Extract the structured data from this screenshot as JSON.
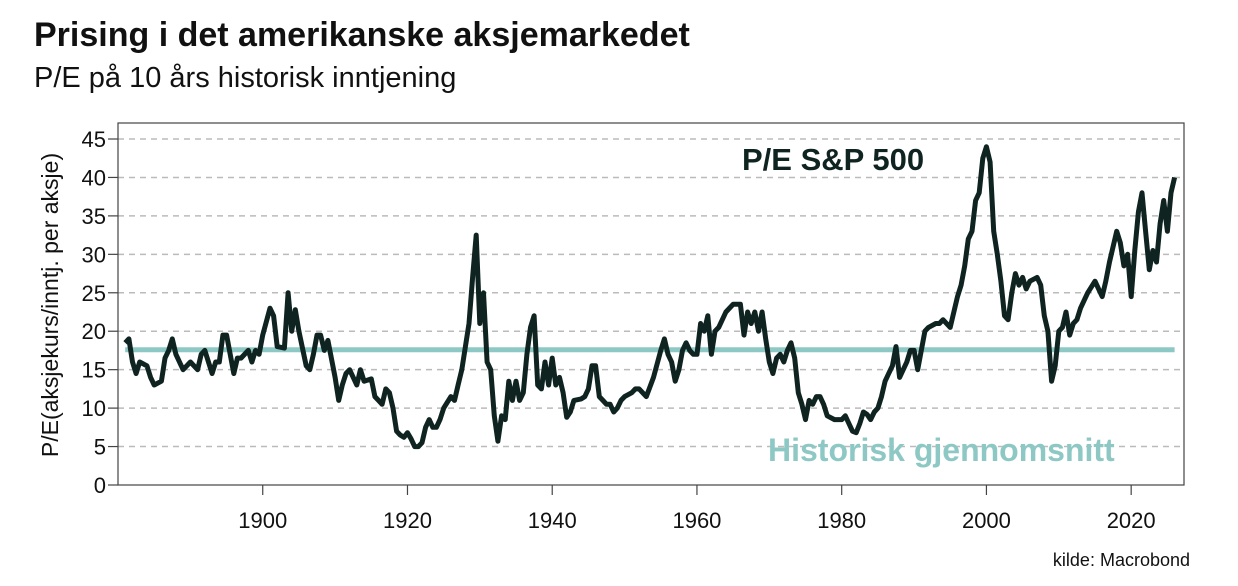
{
  "chart_data": {
    "type": "line",
    "title": "Prising i det amerikanske aksjemarkedet",
    "subtitle": "P/E på 10 års historisk inntjening",
    "ylabel": "P/E(aksjekurs/inntj. per aksje)",
    "xlabel": "",
    "source": "kilde: Macrobond",
    "xlim": [
      1880,
      2027.3
    ],
    "ylim": [
      0,
      45
    ],
    "grid": true,
    "x_ticks": [
      1900,
      1920,
      1940,
      1960,
      1980,
      2000,
      2020
    ],
    "y_ticks": [
      0,
      5,
      10,
      15,
      20,
      25,
      30,
      35,
      40,
      45
    ],
    "colors": {
      "pe": "#0f2420",
      "mean": "#8dc8c5"
    },
    "series": [
      {
        "name": "P/E S&P 500",
        "x": [
          1881,
          1881.5,
          1882,
          1882.5,
          1883,
          1884,
          1884.5,
          1885,
          1886,
          1886.5,
          1887,
          1887.5,
          1888,
          1889,
          1890,
          1891,
          1891.5,
          1892,
          1893,
          1893.5,
          1894,
          1894.5,
          1895,
          1895.5,
          1896,
          1896.5,
          1897,
          1898,
          1898.5,
          1899,
          1899.5,
          1900,
          1901,
          1901.5,
          1902,
          1903,
          1903.5,
          1904,
          1904.5,
          1905,
          1906,
          1906.5,
          1907,
          1907.5,
          1908,
          1908.5,
          1909,
          1910,
          1910.5,
          1911,
          1911.5,
          1912,
          1913,
          1913.5,
          1914,
          1915,
          1915.5,
          1916,
          1916.5,
          1917,
          1917.5,
          1918,
          1918.5,
          1919,
          1919.5,
          1920,
          1920.5,
          1921,
          1921.5,
          1922,
          1922.5,
          1923,
          1923.5,
          1924,
          1924.5,
          1925,
          1926,
          1926.5,
          1927,
          1927.5,
          1928,
          1928.5,
          1929,
          1929.5,
          1930,
          1930.5,
          1931,
          1931.5,
          1932,
          1932.5,
          1933,
          1933.5,
          1934,
          1934.5,
          1935,
          1935.5,
          1936,
          1936.5,
          1937,
          1937.5,
          1938,
          1938.5,
          1939,
          1939.5,
          1940,
          1940.5,
          1941,
          1941.5,
          1942,
          1942.5,
          1943,
          1944,
          1944.5,
          1945,
          1945.5,
          1946,
          1946.5,
          1947,
          1947.5,
          1948,
          1948.5,
          1949,
          1949.5,
          1950,
          1951,
          1951.5,
          1952,
          1953,
          1954,
          1955,
          1955.5,
          1956,
          1956.5,
          1957,
          1957.5,
          1958,
          1958.5,
          1959,
          1959.5,
          1960,
          1960.5,
          1961,
          1961.5,
          1962,
          1962.5,
          1963,
          1964,
          1965,
          1966,
          1966.5,
          1967,
          1967.5,
          1968,
          1968.5,
          1969,
          1969.5,
          1970,
          1970.5,
          1971,
          1971.5,
          1972,
          1972.5,
          1973,
          1973.5,
          1974,
          1974.5,
          1975,
          1975.5,
          1976,
          1976.5,
          1977,
          1977.5,
          1978,
          1979,
          1980,
          1980.5,
          1981,
          1981.5,
          1982,
          1982.5,
          1983,
          1983.5,
          1984,
          1984.5,
          1985,
          1985.5,
          1986,
          1986.5,
          1987,
          1987.5,
          1988,
          1988.5,
          1989,
          1989.5,
          1990,
          1990.5,
          1991,
          1991.5,
          1992,
          1993,
          1993.5,
          1994,
          1995,
          1996,
          1996.5,
          1997,
          1997.5,
          1998,
          1998.5,
          1999,
          1999.5,
          2000,
          2000.5,
          2001,
          2001.5,
          2002,
          2002.5,
          2003,
          2003.5,
          2004,
          2004.5,
          2005,
          2005.5,
          2006,
          2007,
          2007.5,
          2008,
          2008.5,
          2009,
          2009.5,
          2010,
          2010.5,
          2011,
          2011.5,
          2012,
          2012.5,
          2013,
          2014,
          2015,
          2015.5,
          2016,
          2016.5,
          2017,
          2018,
          2018.5,
          2019,
          2019.5,
          2020,
          2020.5,
          2021,
          2021.5,
          2022,
          2022.5,
          2023,
          2023.5,
          2024,
          2024.5,
          2025,
          2025.5,
          2026
        ],
        "values": [
          18.5,
          19,
          16,
          14.5,
          16,
          15.5,
          14,
          13,
          13.5,
          16.5,
          17.5,
          19,
          17,
          15,
          16,
          15,
          17,
          17.5,
          14.5,
          16,
          16,
          19.5,
          19.5,
          17,
          14.5,
          16.5,
          16.5,
          17.5,
          16,
          17.5,
          17,
          19.5,
          23,
          22,
          18,
          17.8,
          25,
          20,
          22.8,
          20,
          15.5,
          15,
          17,
          19.5,
          19.5,
          17.5,
          18.8,
          14,
          11,
          13,
          14.5,
          15,
          13,
          15,
          13.5,
          13.8,
          11.5,
          11,
          10.5,
          12.5,
          12,
          10,
          7,
          6.5,
          6.2,
          6.8,
          6,
          5,
          5,
          5.5,
          7.5,
          8.5,
          7.5,
          7.5,
          8.5,
          10,
          11.5,
          11,
          13,
          15,
          18,
          21,
          27,
          32.5,
          21,
          25,
          16,
          15,
          9,
          5.7,
          9,
          8.5,
          13.5,
          11,
          13.5,
          11,
          12,
          17,
          20.5,
          22,
          13,
          12.5,
          16,
          13,
          16.5,
          13,
          14,
          12,
          8.8,
          9.5,
          11,
          11.2,
          11.5,
          12.5,
          15.5,
          15.5,
          11.5,
          11,
          10.5,
          10.5,
          9.5,
          10,
          11,
          11.5,
          12,
          12.5,
          12.5,
          11.5,
          14,
          17.5,
          19,
          17,
          16,
          13.5,
          15,
          17.5,
          18.5,
          17.5,
          17,
          17,
          21,
          20,
          22,
          17,
          20,
          20.5,
          22.5,
          23.5,
          23.5,
          19.5,
          22.5,
          21,
          22.5,
          20,
          22.5,
          19,
          16,
          14.5,
          16.5,
          17,
          16,
          17.5,
          18.5,
          16.5,
          12,
          10.5,
          8.5,
          11,
          10.5,
          11.5,
          11.5,
          10.5,
          9,
          8.5,
          8.5,
          9,
          8,
          7,
          6.8,
          8,
          9.5,
          9.2,
          8.5,
          9.5,
          10,
          11.5,
          13.5,
          14.5,
          15.5,
          18,
          14,
          15,
          16,
          17.5,
          17.5,
          15,
          17.5,
          20,
          20.5,
          21,
          21,
          21.5,
          20.5,
          24.5,
          26,
          28.5,
          32,
          33,
          37,
          38,
          42.5,
          44,
          42,
          33,
          30,
          26.5,
          22,
          21.5,
          25,
          27.5,
          26,
          27,
          25.5,
          26.5,
          27,
          26,
          22,
          20,
          13.5,
          15.5,
          20,
          20.5,
          22.5,
          19.5,
          21,
          21.5,
          23,
          25,
          26.5,
          25.5,
          24.5,
          26.5,
          29,
          33,
          31.5,
          28.5,
          30,
          24.5,
          30.5,
          35.5,
          38,
          33,
          28,
          30.5,
          29,
          34,
          37,
          33,
          38,
          40
        ]
      },
      {
        "name": "Historisk gjennomsnitt",
        "x": [
          1881,
          2026
        ],
        "values": [
          17.6,
          17.6
        ]
      }
    ],
    "annotations": [
      "P/E S&P 500",
      "Historisk gjennomsnitt"
    ]
  }
}
